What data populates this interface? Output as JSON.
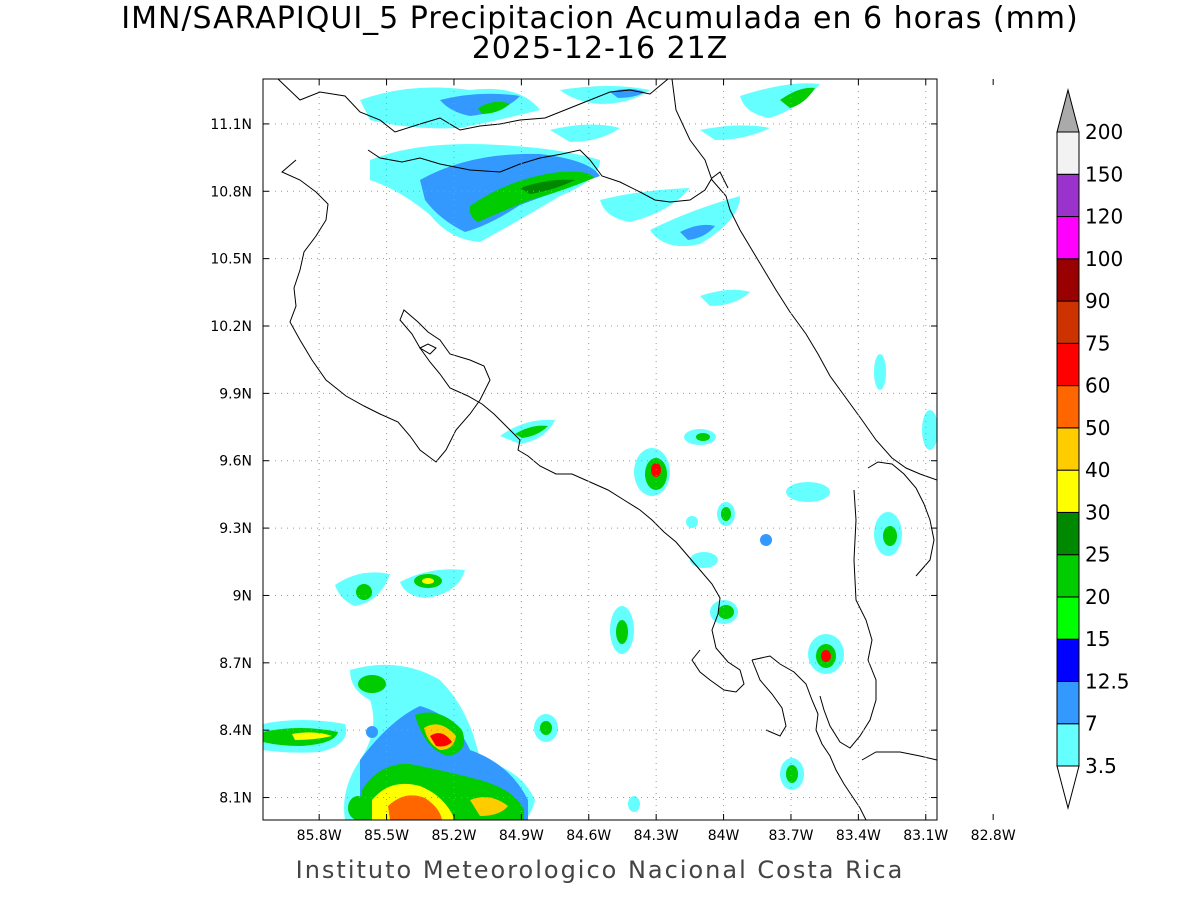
{
  "title_line1": "IMN/SARAPIQUI_5 Precipitacion Acumulada en 6 horas (mm)",
  "title_line2": "2025-12-16 21Z",
  "credit": "Instituto Meteorologico Nacional Costa Rica",
  "map": {
    "lon_range": [
      -86.05,
      -83.05
    ],
    "lat_range": [
      8.0,
      11.3
    ],
    "lon_ticks": [
      "85.8W",
      "85.5W",
      "85.2W",
      "84.9W",
      "84.6W",
      "84.3W",
      "84W",
      "83.7W",
      "83.4W",
      "83.1W",
      "82.8W"
    ],
    "lat_ticks": [
      "8.1N",
      "8.4N",
      "8.7N",
      "9N",
      "9.3N",
      "9.6N",
      "9.9N",
      "10.2N",
      "10.5N",
      "10.8N",
      "11.1N"
    ],
    "grid": "dotted"
  },
  "colorbar": {
    "labels": [
      "3.5",
      "7",
      "12.5",
      "15",
      "20",
      "25",
      "30",
      "40",
      "50",
      "60",
      "75",
      "90",
      "100",
      "120",
      "150",
      "200"
    ],
    "colors": [
      "#66ffff",
      "#3399ff",
      "#0000ff",
      "#00ff00",
      "#00cc00",
      "#008800",
      "#ffff00",
      "#ffcc00",
      "#ff6600",
      "#ff0000",
      "#cc3300",
      "#990000",
      "#ff00ff",
      "#9933cc",
      "#f2f2f2",
      "#aaaaaa"
    ]
  }
}
